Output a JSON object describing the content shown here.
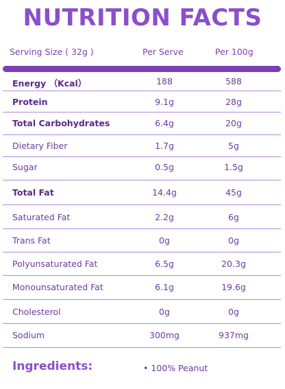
{
  "title": "NUTRITION FACTS",
  "header": {
    "serving_size": "Serving Size ( 32g )",
    "per_serve": "Per Serve",
    "per_100g": "Per 100g"
  },
  "rows": [
    {
      "name": "Energy （Kcal）",
      "per_serve": "188",
      "per_100g": "588",
      "bold": true
    },
    {
      "name": "Protein",
      "per_serve": "9.1g",
      "per_100g": "28g",
      "bold": true
    },
    {
      "name": "Total Carbohydrates",
      "per_serve": "6.4g",
      "per_100g": "20g",
      "bold": true
    },
    {
      "name": "Dietary Fiber",
      "per_serve": "1.7g",
      "per_100g": "5g",
      "bold": false
    },
    {
      "name": "Sugar",
      "per_serve": "0.5g",
      "per_100g": "1.5g",
      "bold": false
    },
    {
      "name": "Total Fat",
      "per_serve": "14.4g",
      "per_100g": "45g",
      "bold": true
    },
    {
      "name": "Saturated Fat",
      "per_serve": "2.2g",
      "per_100g": "6g",
      "bold": false
    },
    {
      "name": "Trans Fat",
      "per_serve": "0g",
      "per_100g": "0g",
      "bold": false
    },
    {
      "name": "Polyunsaturated Fat",
      "per_serve": "6.5g",
      "per_100g": "20.3g",
      "bold": false
    },
    {
      "name": "Monounsaturated Fat",
      "per_serve": "6.1g",
      "per_100g": "19.6g",
      "bold": false
    },
    {
      "name": "Cholesterol",
      "per_serve": "0g",
      "per_100g": "0g",
      "bold": false
    },
    {
      "name": "Sodium",
      "per_serve": "300mg",
      "per_100g": "937mg",
      "bold": false
    }
  ],
  "ingredients": {
    "label": "Ingredients:",
    "value": "• 100% Peanut"
  },
  "colors": {
    "accent": "#8a4fc9",
    "bar": "#7a3fb5",
    "text": "#6b3a9e"
  }
}
